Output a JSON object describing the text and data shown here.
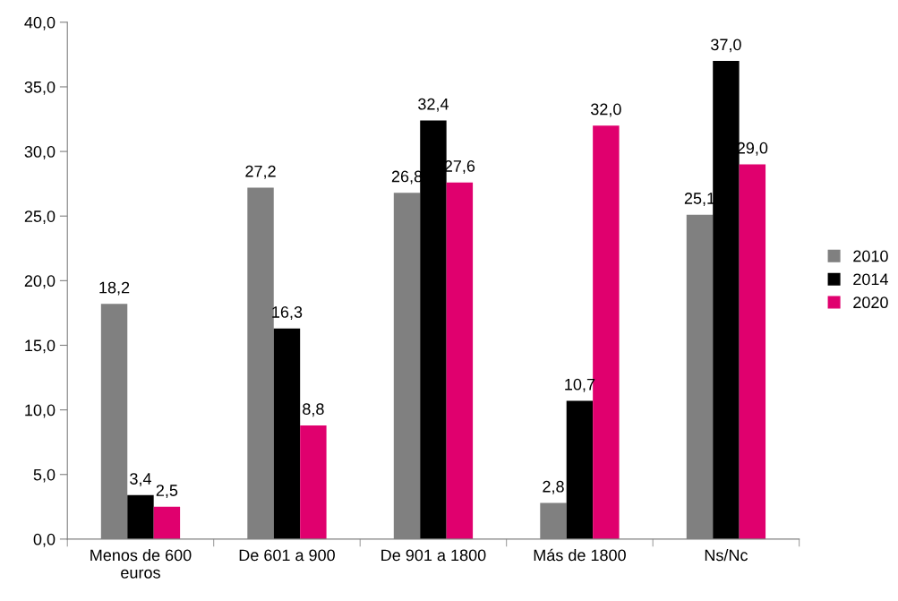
{
  "chart_data": {
    "type": "bar",
    "categories": [
      "Menos de 600\neuros",
      "De 601 a 900",
      "De 901 a 1800",
      "Más de 1800",
      "Ns/Nc"
    ],
    "series": [
      {
        "name": "2010",
        "color": "#808080",
        "values": [
          18.2,
          27.2,
          26.8,
          2.8,
          25.1
        ],
        "value_labels": [
          "18,2",
          "27,2",
          "26,8",
          "2,8",
          "25,1"
        ]
      },
      {
        "name": "2014",
        "color": "#000000",
        "values": [
          3.4,
          16.3,
          32.4,
          10.7,
          37.0
        ],
        "value_labels": [
          "3,4",
          "16,3",
          "32,4",
          "10,7",
          "37,0"
        ]
      },
      {
        "name": "2020",
        "color": "#e0006e",
        "values": [
          2.5,
          8.8,
          27.6,
          32.0,
          29.0
        ],
        "value_labels": [
          "2,5",
          "8,8",
          "27,6",
          "32,0",
          "29,0"
        ]
      }
    ],
    "ylim": [
      0,
      40
    ],
    "yticks": [
      {
        "value": 0,
        "label": "0,0"
      },
      {
        "value": 5,
        "label": "5,0"
      },
      {
        "value": 10,
        "label": "10,0"
      },
      {
        "value": 15,
        "label": "15,0"
      },
      {
        "value": 20,
        "label": "20,0"
      },
      {
        "value": 25,
        "label": "25,0"
      },
      {
        "value": 30,
        "label": "30,0"
      },
      {
        "value": 35,
        "label": "35,0"
      },
      {
        "value": 40,
        "label": "40,0"
      }
    ],
    "grid": false,
    "legend": "right"
  }
}
